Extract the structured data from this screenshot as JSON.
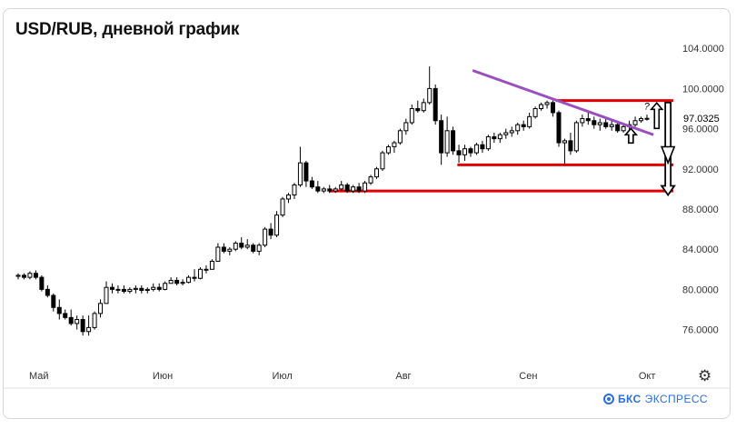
{
  "title": "USD/RUB, дневной график",
  "brand": {
    "name": "БКС",
    "suffix": "ЭКСПРЕСС"
  },
  "gear_icon": "gear-icon",
  "chart_data": {
    "type": "candlestick",
    "title": "USD/RUB, дневной график",
    "y_ticks": [
      "104.0000",
      "100.0000",
      "96.0000",
      "92.0000",
      "88.0000",
      "84.0000",
      "80.0000",
      "76.0000"
    ],
    "y_tick_values": [
      104,
      100,
      96,
      92,
      88,
      84,
      80,
      76
    ],
    "ylim": [
      73.7,
      106.1
    ],
    "x_ticks": [
      "Май",
      "Июн",
      "Июл",
      "Авг",
      "Сен",
      "Окт"
    ],
    "x_tick_days": [
      0,
      31,
      61,
      92,
      123,
      153
    ],
    "last_price_label": "97.0325",
    "last_price": 97.0325,
    "candles": [
      {
        "o": 81.3,
        "h": 81.6,
        "l": 81.0,
        "c": 81.4
      },
      {
        "o": 81.4,
        "h": 81.6,
        "l": 81.0,
        "c": 81.2
      },
      {
        "o": 81.2,
        "h": 81.8,
        "l": 81.0,
        "c": 81.6
      },
      {
        "o": 81.6,
        "h": 81.9,
        "l": 81.0,
        "c": 81.2
      },
      {
        "o": 81.2,
        "h": 81.4,
        "l": 79.8,
        "c": 80.0
      },
      {
        "o": 80.0,
        "h": 80.4,
        "l": 79.2,
        "c": 79.4
      },
      {
        "o": 79.4,
        "h": 79.6,
        "l": 77.8,
        "c": 78.2
      },
      {
        "o": 78.2,
        "h": 79.0,
        "l": 77.0,
        "c": 77.6
      },
      {
        "o": 77.6,
        "h": 78.0,
        "l": 77.0,
        "c": 77.2
      },
      {
        "o": 77.2,
        "h": 78.0,
        "l": 76.4,
        "c": 76.6
      },
      {
        "o": 76.6,
        "h": 77.4,
        "l": 76.0,
        "c": 77.0
      },
      {
        "o": 77.0,
        "h": 77.4,
        "l": 75.4,
        "c": 75.8
      },
      {
        "o": 75.8,
        "h": 77.4,
        "l": 75.4,
        "c": 76.2
      },
      {
        "o": 76.2,
        "h": 77.8,
        "l": 76.0,
        "c": 77.6
      },
      {
        "o": 77.6,
        "h": 79.0,
        "l": 77.2,
        "c": 78.6
      },
      {
        "o": 78.6,
        "h": 80.8,
        "l": 78.6,
        "c": 80.2
      },
      {
        "o": 80.2,
        "h": 80.6,
        "l": 79.6,
        "c": 80.0
      },
      {
        "o": 80.0,
        "h": 80.4,
        "l": 79.6,
        "c": 80.0
      },
      {
        "o": 80.0,
        "h": 80.4,
        "l": 79.6,
        "c": 79.8
      },
      {
        "o": 79.8,
        "h": 80.2,
        "l": 79.6,
        "c": 80.0
      },
      {
        "o": 80.0,
        "h": 80.4,
        "l": 79.6,
        "c": 80.1
      },
      {
        "o": 80.1,
        "h": 80.4,
        "l": 79.6,
        "c": 79.9
      },
      {
        "o": 79.9,
        "h": 80.2,
        "l": 79.6,
        "c": 80.0
      },
      {
        "o": 80.0,
        "h": 80.6,
        "l": 79.8,
        "c": 80.2
      },
      {
        "o": 80.2,
        "h": 80.6,
        "l": 79.8,
        "c": 80.0
      },
      {
        "o": 80.0,
        "h": 80.8,
        "l": 79.9,
        "c": 80.6
      },
      {
        "o": 80.6,
        "h": 81.2,
        "l": 80.6,
        "c": 80.9
      },
      {
        "o": 80.9,
        "h": 81.2,
        "l": 80.4,
        "c": 80.6
      },
      {
        "o": 80.6,
        "h": 81.0,
        "l": 80.4,
        "c": 80.7
      },
      {
        "o": 80.7,
        "h": 81.4,
        "l": 80.6,
        "c": 81.2
      },
      {
        "o": 81.2,
        "h": 82.0,
        "l": 80.8,
        "c": 81.1
      },
      {
        "o": 81.1,
        "h": 82.2,
        "l": 81.0,
        "c": 82.0
      },
      {
        "o": 82.0,
        "h": 82.4,
        "l": 81.6,
        "c": 82.0
      },
      {
        "o": 82.0,
        "h": 83.0,
        "l": 82.0,
        "c": 82.8
      },
      {
        "o": 82.8,
        "h": 84.6,
        "l": 82.8,
        "c": 84.2
      },
      {
        "o": 84.2,
        "h": 84.6,
        "l": 83.6,
        "c": 83.8
      },
      {
        "o": 83.8,
        "h": 84.2,
        "l": 83.4,
        "c": 84.0
      },
      {
        "o": 84.0,
        "h": 84.8,
        "l": 83.8,
        "c": 84.6
      },
      {
        "o": 84.6,
        "h": 85.2,
        "l": 84.0,
        "c": 84.2
      },
      {
        "o": 84.2,
        "h": 85.0,
        "l": 84.0,
        "c": 84.4
      },
      {
        "o": 84.4,
        "h": 84.6,
        "l": 83.6,
        "c": 83.8
      },
      {
        "o": 83.8,
        "h": 84.6,
        "l": 83.4,
        "c": 84.4
      },
      {
        "o": 84.4,
        "h": 86.2,
        "l": 84.2,
        "c": 86.0
      },
      {
        "o": 86.0,
        "h": 86.6,
        "l": 85.0,
        "c": 85.4
      },
      {
        "o": 85.4,
        "h": 87.8,
        "l": 85.2,
        "c": 87.4
      },
      {
        "o": 87.4,
        "h": 89.2,
        "l": 87.2,
        "c": 89.0
      },
      {
        "o": 89.0,
        "h": 89.6,
        "l": 88.6,
        "c": 89.4
      },
      {
        "o": 89.4,
        "h": 90.6,
        "l": 89.0,
        "c": 90.4
      },
      {
        "o": 90.4,
        "h": 94.2,
        "l": 90.2,
        "c": 92.6
      },
      {
        "o": 92.6,
        "h": 92.8,
        "l": 90.2,
        "c": 90.8
      },
      {
        "o": 90.8,
        "h": 91.2,
        "l": 90.0,
        "c": 90.2
      },
      {
        "o": 90.2,
        "h": 90.8,
        "l": 89.6,
        "c": 89.8
      },
      {
        "o": 89.8,
        "h": 90.2,
        "l": 89.6,
        "c": 90.0
      },
      {
        "o": 90.0,
        "h": 90.4,
        "l": 89.6,
        "c": 89.8
      },
      {
        "o": 89.8,
        "h": 90.2,
        "l": 89.6,
        "c": 90.0
      },
      {
        "o": 90.0,
        "h": 90.8,
        "l": 89.8,
        "c": 90.4
      },
      {
        "o": 90.4,
        "h": 90.6,
        "l": 89.6,
        "c": 89.8
      },
      {
        "o": 89.8,
        "h": 90.4,
        "l": 89.6,
        "c": 90.2
      },
      {
        "o": 90.2,
        "h": 90.6,
        "l": 89.6,
        "c": 89.8
      },
      {
        "o": 89.8,
        "h": 90.8,
        "l": 89.6,
        "c": 90.6
      },
      {
        "o": 90.6,
        "h": 91.4,
        "l": 90.4,
        "c": 91.2
      },
      {
        "o": 91.2,
        "h": 92.2,
        "l": 91.0,
        "c": 92.0
      },
      {
        "o": 92.0,
        "h": 93.8,
        "l": 91.8,
        "c": 93.6
      },
      {
        "o": 93.6,
        "h": 94.4,
        "l": 93.4,
        "c": 94.2
      },
      {
        "o": 94.2,
        "h": 94.8,
        "l": 93.6,
        "c": 94.6
      },
      {
        "o": 94.6,
        "h": 96.0,
        "l": 94.4,
        "c": 95.8
      },
      {
        "o": 95.8,
        "h": 97.0,
        "l": 95.4,
        "c": 96.6
      },
      {
        "o": 96.6,
        "h": 98.4,
        "l": 96.4,
        "c": 98.0
      },
      {
        "o": 98.0,
        "h": 98.8,
        "l": 97.6,
        "c": 97.8
      },
      {
        "o": 97.8,
        "h": 99.0,
        "l": 97.6,
        "c": 98.6
      },
      {
        "o": 98.6,
        "h": 102.2,
        "l": 98.4,
        "c": 100.0
      },
      {
        "o": 100.0,
        "h": 100.4,
        "l": 96.4,
        "c": 96.8
      },
      {
        "o": 96.8,
        "h": 97.4,
        "l": 92.4,
        "c": 93.6
      },
      {
        "o": 93.6,
        "h": 97.2,
        "l": 93.2,
        "c": 95.8
      },
      {
        "o": 95.8,
        "h": 96.2,
        "l": 93.4,
        "c": 93.8
      },
      {
        "o": 93.8,
        "h": 94.4,
        "l": 92.6,
        "c": 93.4
      },
      {
        "o": 93.4,
        "h": 94.4,
        "l": 92.8,
        "c": 94.0
      },
      {
        "o": 94.0,
        "h": 94.2,
        "l": 93.2,
        "c": 93.6
      },
      {
        "o": 93.6,
        "h": 94.6,
        "l": 93.4,
        "c": 94.4
      },
      {
        "o": 94.4,
        "h": 94.8,
        "l": 93.6,
        "c": 94.0
      },
      {
        "o": 94.0,
        "h": 95.4,
        "l": 93.8,
        "c": 95.2
      },
      {
        "o": 95.2,
        "h": 95.6,
        "l": 94.6,
        "c": 95.0
      },
      {
        "o": 95.0,
        "h": 95.6,
        "l": 94.6,
        "c": 95.4
      },
      {
        "o": 95.4,
        "h": 96.0,
        "l": 95.0,
        "c": 95.6
      },
      {
        "o": 95.6,
        "h": 96.2,
        "l": 95.2,
        "c": 95.8
      },
      {
        "o": 95.8,
        "h": 96.6,
        "l": 95.4,
        "c": 96.4
      },
      {
        "o": 96.4,
        "h": 96.8,
        "l": 95.8,
        "c": 96.2
      },
      {
        "o": 96.2,
        "h": 97.6,
        "l": 96.0,
        "c": 97.2
      },
      {
        "o": 97.2,
        "h": 98.2,
        "l": 97.0,
        "c": 98.0
      },
      {
        "o": 98.0,
        "h": 98.6,
        "l": 97.8,
        "c": 98.4
      },
      {
        "o": 98.4,
        "h": 98.8,
        "l": 98.0,
        "c": 98.6
      },
      {
        "o": 98.6,
        "h": 98.8,
        "l": 97.2,
        "c": 97.6
      },
      {
        "o": 97.6,
        "h": 97.8,
        "l": 94.2,
        "c": 94.6
      },
      {
        "o": 94.6,
        "h": 95.0,
        "l": 92.4,
        "c": 94.8
      },
      {
        "o": 94.8,
        "h": 95.6,
        "l": 93.4,
        "c": 93.8
      },
      {
        "o": 93.8,
        "h": 96.8,
        "l": 93.6,
        "c": 96.6
      },
      {
        "o": 96.6,
        "h": 97.4,
        "l": 96.2,
        "c": 97.0
      },
      {
        "o": 97.0,
        "h": 97.6,
        "l": 96.4,
        "c": 96.8
      },
      {
        "o": 96.8,
        "h": 97.2,
        "l": 96.0,
        "c": 96.4
      },
      {
        "o": 96.4,
        "h": 97.0,
        "l": 95.8,
        "c": 96.6
      },
      {
        "o": 96.6,
        "h": 97.0,
        "l": 96.0,
        "c": 96.2
      },
      {
        "o": 96.2,
        "h": 96.8,
        "l": 95.8,
        "c": 96.4
      },
      {
        "o": 96.4,
        "h": 96.8,
        "l": 95.6,
        "c": 95.8
      },
      {
        "o": 95.8,
        "h": 96.4,
        "l": 95.6,
        "c": 96.2
      },
      {
        "o": 96.2,
        "h": 96.8,
        "l": 95.8,
        "c": 96.4
      },
      {
        "o": 96.4,
        "h": 97.2,
        "l": 96.2,
        "c": 96.8
      },
      {
        "o": 96.8,
        "h": 97.2,
        "l": 96.6,
        "c": 97.0
      },
      {
        "o": 97.0,
        "h": 97.4,
        "l": 96.8,
        "c": 97.03
      }
    ],
    "trendline": [
      {
        "x": 0.697,
        "y": 101.8
      },
      {
        "x": 0.97,
        "y": 95.4
      }
    ],
    "levels": [
      {
        "price": 98.8,
        "from": 0.823,
        "to": 1.0,
        "color": "#e00000"
      },
      {
        "price": 92.4,
        "from": 0.674,
        "to": 1.0,
        "color": "#e00000"
      },
      {
        "price": 89.8,
        "from": 0.48,
        "to": 1.0,
        "color": "#e00000"
      }
    ],
    "annotations": [
      {
        "type": "arrow-up",
        "x": 0.936,
        "y": 95.3,
        "label": ""
      },
      {
        "type": "arrow-up",
        "x": 0.975,
        "y": 96.3,
        "label": "?"
      },
      {
        "type": "arrow-down",
        "x": 0.992,
        "y": 98.6,
        "label": ""
      }
    ],
    "colors": {
      "up": "#ffffff",
      "down": "#000000",
      "trend": "#9a4fbf",
      "level": "#e00000"
    }
  }
}
